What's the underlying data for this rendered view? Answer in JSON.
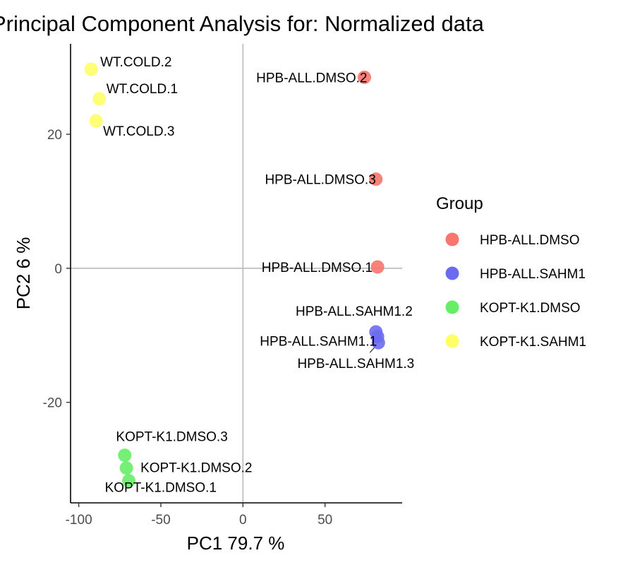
{
  "chart_data": {
    "type": "scatter",
    "title": "Principal Component Analysis for:  Normalized data",
    "xlabel": "PC1 79.7 %",
    "ylabel": "PC2 6 %",
    "xlim": [
      -105,
      97
    ],
    "ylim": [
      -35,
      33.5
    ],
    "xticks": [
      -100,
      -50,
      0,
      50
    ],
    "yticks": [
      -20,
      0,
      20
    ],
    "xtick_labels": [
      "-100",
      "-50",
      "0",
      "50"
    ],
    "ytick_labels": [
      "-20",
      "0",
      "20"
    ],
    "reference_lines": {
      "x": 0,
      "y": 0
    },
    "legend": {
      "title": "Group",
      "position": "right",
      "entries": [
        {
          "name": "HPB-ALL.DMSO",
          "color": "#F8766D"
        },
        {
          "name": "HPB-ALL.SAHM1",
          "color": "#6B6BF0"
        },
        {
          "name": "KOPT-K1.DMSO",
          "color": "#66EE66"
        },
        {
          "name": "KOPT-K1.SAHM1",
          "color": "#FFFF66"
        }
      ]
    },
    "points": [
      {
        "label": "HPB-ALL.DMSO.2",
        "group": "HPB-ALL.DMSO",
        "x": 74,
        "y": 28.5
      },
      {
        "label": "HPB-ALL.DMSO.3",
        "group": "HPB-ALL.DMSO",
        "x": 81,
        "y": 13.3
      },
      {
        "label": "HPB-ALL.DMSO.1",
        "group": "HPB-ALL.DMSO",
        "x": 82,
        "y": 0.2
      },
      {
        "label": "HPB-ALL.SAHM1.2",
        "group": "HPB-ALL.SAHM1",
        "x": 81,
        "y": -9.5
      },
      {
        "label": "HPB-ALL.SAHM1.1",
        "group": "HPB-ALL.SAHM1",
        "x": 82,
        "y": -10.2
      },
      {
        "label": "HPB-ALL.SAHM1.3",
        "group": "HPB-ALL.SAHM1",
        "x": 82.5,
        "y": -11.1
      },
      {
        "label": "KOPT-K1.DMSO.3",
        "group": "KOPT-K1.DMSO",
        "x": -72,
        "y": -27.9
      },
      {
        "label": "KOPT-K1.DMSO.2",
        "group": "KOPT-K1.DMSO",
        "x": -71,
        "y": -29.8
      },
      {
        "label": "KOPT-K1.DMSO.1",
        "group": "KOPT-K1.DMSO",
        "x": -69.5,
        "y": -31.7
      },
      {
        "label": "WT.COLD.2",
        "group": "KOPT-K1.SAHM1",
        "x": -92.5,
        "y": 29.7
      },
      {
        "label": "WT.COLD.1",
        "group": "KOPT-K1.SAHM1",
        "x": -87.5,
        "y": 25.3
      },
      {
        "label": "WT.COLD.3",
        "group": "KOPT-K1.SAHM1",
        "x": -89.5,
        "y": 22.0
      }
    ]
  }
}
